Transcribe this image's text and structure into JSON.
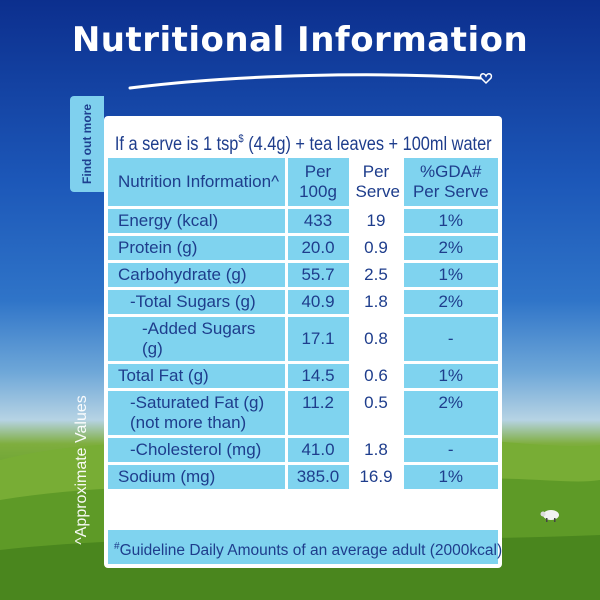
{
  "title": "Nutritional Information",
  "side_tab": "Find out more",
  "side_note": "^Approximate Values",
  "serve_line": {
    "prefix": "If a serve is 1 tsp",
    "sup": "$",
    "suffix": " (4.4g) + tea leaves + 100ml water"
  },
  "headers": {
    "nutrition": "Nutrition Information^",
    "per100": "Per 100g",
    "perServe": "Per Serve",
    "gda": "%GDA# Per Serve"
  },
  "rows": [
    {
      "name": "Energy (kcal)",
      "per100": "433",
      "perServe": "19",
      "gda": "1%"
    },
    {
      "name": "Protein (g)",
      "per100": "20.0",
      "perServe": "0.9",
      "gda": "2%"
    },
    {
      "name": "Carbohydrate (g)",
      "per100": "55.7",
      "perServe": "2.5",
      "gda": "1%"
    },
    {
      "name": "-Total Sugars (g)",
      "per100": "40.9",
      "perServe": "1.8",
      "gda": "2%"
    },
    {
      "name": "-Added Sugars (g)",
      "per100": "17.1",
      "perServe": "0.8",
      "gda": "-"
    },
    {
      "name": "Total Fat (g)",
      "per100": "14.5",
      "perServe": "0.6",
      "gda": "1%"
    },
    {
      "name": "-Saturated Fat (g) (not more than)",
      "per100": "11.2",
      "perServe": "0.5",
      "gda": "2%"
    },
    {
      "name": "-Cholesterol (mg)",
      "per100": "41.0",
      "perServe": "1.8",
      "gda": "-"
    },
    {
      "name": "Sodium (mg)",
      "per100": "385.0",
      "perServe": "16.9",
      "gda": "1%"
    }
  ],
  "footer": {
    "sup": "#",
    "text": "Guideline Daily Amounts of an average adult (2000kcal)"
  },
  "colors": {
    "sky_top": "#0c2f8e",
    "panel_cyan": "#7fd3ef",
    "text_navy": "#1e3d8c",
    "grass": "#5b9a2a"
  }
}
